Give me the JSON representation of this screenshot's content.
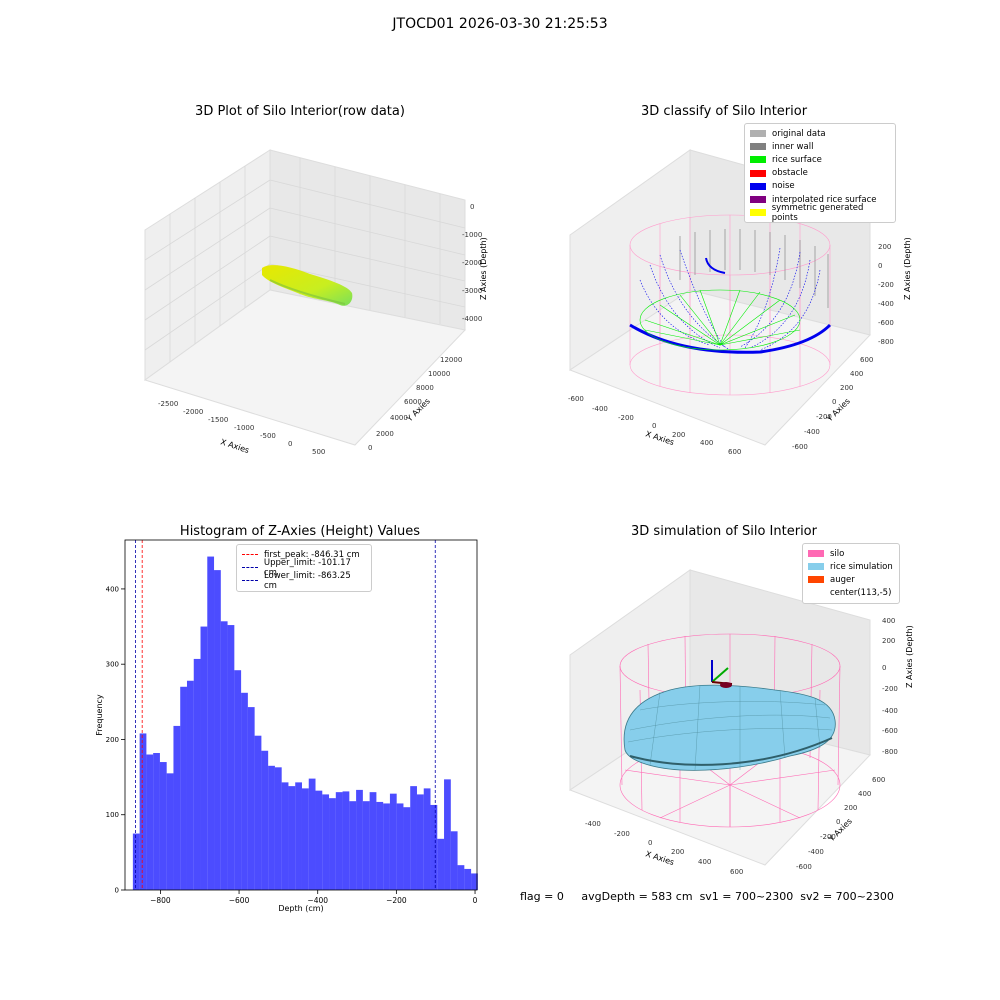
{
  "suptitle": "JTOCD01 2026-03-30 21:25:53",
  "panels": {
    "raw": {
      "title": "3D Plot of Silo Interior(row data)",
      "xlabel": "X Axies",
      "ylabel": "Y Axies",
      "zlabel": "Z Axies (Depth)",
      "xticks": [
        "-2500",
        "-2000",
        "-1500",
        "-1000",
        "-500",
        "0",
        "500"
      ],
      "yticks": [
        "0",
        "2000",
        "4000",
        "6000",
        "8000",
        "10000",
        "12000"
      ],
      "zticks": [
        "0",
        "-1000",
        "-2000",
        "-3000",
        "-4000"
      ]
    },
    "classify": {
      "title": "3D classify of Silo Interior",
      "xlabel": "X Axies",
      "ylabel": "Y Axies",
      "zlabel": "Z Axies (Depth)",
      "xticks": [
        "-600",
        "-400",
        "-200",
        "0",
        "200",
        "400",
        "600"
      ],
      "yticks": [
        "600",
        "400",
        "200",
        "0",
        "-200",
        "-400",
        "-600"
      ],
      "zticks": [
        "200",
        "0",
        "-200",
        "-400",
        "-600",
        "-800"
      ],
      "legend": [
        {
          "label": "original data",
          "color": "#b0b0b0"
        },
        {
          "label": "inner wall",
          "color": "#808080"
        },
        {
          "label": "rice surface",
          "color": "#00ee00"
        },
        {
          "label": "obstacle",
          "color": "#ff0000"
        },
        {
          "label": "noise",
          "color": "#0000ee"
        },
        {
          "label": "interpolated rice surface",
          "color": "#800080"
        },
        {
          "label": "symmetric generated points",
          "color": "#ffff00"
        }
      ]
    },
    "simulation": {
      "title": "3D simulation of Silo Interior",
      "xlabel": "X Axies",
      "ylabel": "Y Axies",
      "zlabel": "Z Axies (Depth)",
      "xticks": [
        "-400",
        "-200",
        "0",
        "200",
        "400",
        "600"
      ],
      "yticks": [
        "600",
        "400",
        "200",
        "0",
        "-200",
        "-400",
        "-600"
      ],
      "zticks": [
        "400",
        "200",
        "0",
        "-200",
        "-400",
        "-600",
        "-800"
      ],
      "legend": [
        {
          "label": "silo",
          "color": "#ff69b4"
        },
        {
          "label": "rice simulation",
          "color": "#87ceeb"
        },
        {
          "label": "auger",
          "color": "#ff4500"
        },
        {
          "label": "center(113,-5)",
          "color": "#ffffff"
        }
      ]
    }
  },
  "chart_data": [
    {
      "type": "bar",
      "title": "Histogram of Z-Axies (Height) Values",
      "xlabel": "Depth (cm)",
      "ylabel": "Frequency",
      "xlim": [
        -890,
        5
      ],
      "ylim": [
        0,
        465
      ],
      "xticks": [
        -800,
        -600,
        -400,
        -200,
        0
      ],
      "yticks": [
        0,
        100,
        200,
        300,
        400
      ],
      "bin_start": -870,
      "bin_width": 17.2,
      "values": [
        75,
        208,
        180,
        182,
        170,
        155,
        218,
        270,
        278,
        307,
        350,
        443,
        425,
        357,
        352,
        292,
        262,
        243,
        205,
        185,
        165,
        163,
        143,
        138,
        143,
        135,
        148,
        132,
        127,
        122,
        130,
        131,
        118,
        133,
        118,
        130,
        117,
        115,
        128,
        115,
        110,
        138,
        127,
        135,
        113,
        68,
        147,
        78,
        33,
        28,
        22
      ],
      "color": "#0000ff",
      "lines": [
        {
          "label": "first_peak: -846.31 cm",
          "x": -846.31,
          "color": "#ff0000"
        },
        {
          "label": "Upper_limit: -101.17 cm",
          "x": -101.17,
          "color": "#0000aa"
        },
        {
          "label": "Lower_limit: -863.25 cm",
          "x": -863.25,
          "color": "#0000aa"
        }
      ],
      "legend_position": "top-center"
    }
  ],
  "footer": {
    "flag": "flag = 0",
    "avgDepth": "avgDepth = 583 cm",
    "sv1": "sv1 = 700~2300",
    "sv2": "sv2 = 700~2300"
  }
}
